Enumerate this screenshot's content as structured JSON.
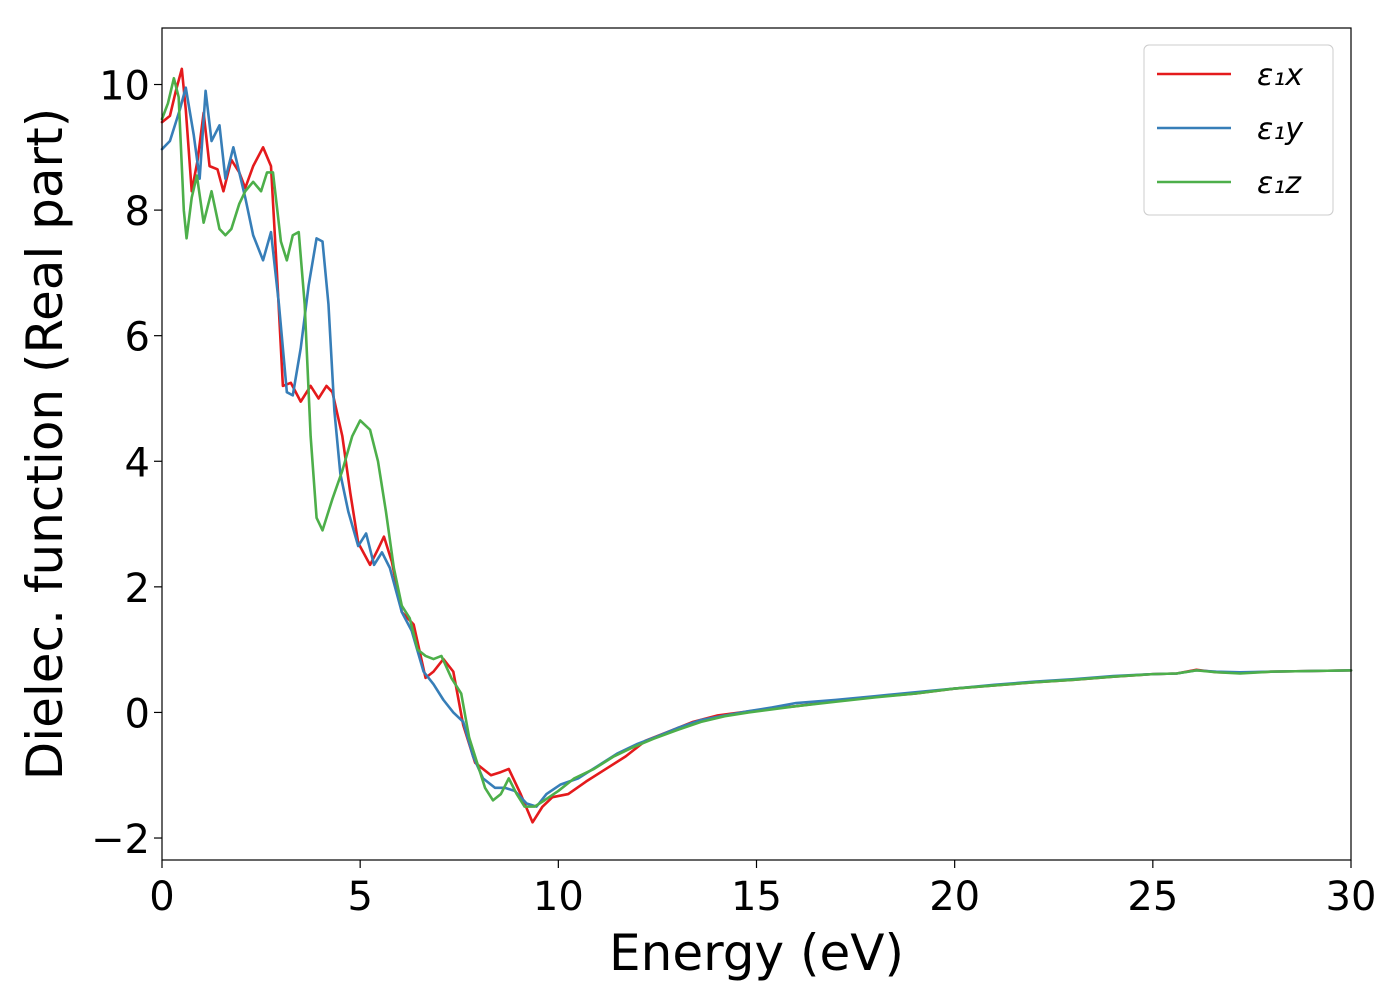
{
  "chart_data": {
    "type": "line",
    "title": "",
    "xlabel": "Energy (eV)",
    "ylabel": "Dielec. function (Real part)",
    "xlim": [
      0,
      30
    ],
    "ylim": [
      -2.35,
      10.9
    ],
    "xticks": [
      0,
      5,
      10,
      15,
      20,
      25,
      30
    ],
    "yticks": [
      -2,
      0,
      2,
      4,
      6,
      8,
      10
    ],
    "xtick_labels": [
      "0",
      "5",
      "10",
      "15",
      "20",
      "25",
      "30"
    ],
    "ytick_labels": [
      "−2",
      "0",
      "2",
      "4",
      "6",
      "8",
      "10"
    ],
    "grid": false,
    "legend_position": "top-right",
    "series": [
      {
        "name": "ε₁x",
        "color": "#e41a1c",
        "points": [
          [
            0,
            9.4
          ],
          [
            0.2,
            9.5
          ],
          [
            0.35,
            9.9
          ],
          [
            0.5,
            10.25
          ],
          [
            0.6,
            9.6
          ],
          [
            0.75,
            8.3
          ],
          [
            0.9,
            8.8
          ],
          [
            1.05,
            9.55
          ],
          [
            1.2,
            8.7
          ],
          [
            1.4,
            8.65
          ],
          [
            1.55,
            8.3
          ],
          [
            1.75,
            8.8
          ],
          [
            1.95,
            8.6
          ],
          [
            2.1,
            8.35
          ],
          [
            2.3,
            8.7
          ],
          [
            2.55,
            9.0
          ],
          [
            2.75,
            8.7
          ],
          [
            2.9,
            7.0
          ],
          [
            3.05,
            5.2
          ],
          [
            3.25,
            5.25
          ],
          [
            3.5,
            4.95
          ],
          [
            3.75,
            5.2
          ],
          [
            3.95,
            5.0
          ],
          [
            4.15,
            5.2
          ],
          [
            4.3,
            5.1
          ],
          [
            4.55,
            4.4
          ],
          [
            4.75,
            3.5
          ],
          [
            4.95,
            2.7
          ],
          [
            5.25,
            2.35
          ],
          [
            5.45,
            2.6
          ],
          [
            5.6,
            2.8
          ],
          [
            5.8,
            2.4
          ],
          [
            6.05,
            1.6
          ],
          [
            6.35,
            1.4
          ],
          [
            6.65,
            0.55
          ],
          [
            6.85,
            0.65
          ],
          [
            7.1,
            0.85
          ],
          [
            7.35,
            0.65
          ],
          [
            7.6,
            -0.2
          ],
          [
            7.9,
            -0.8
          ],
          [
            8.3,
            -1.0
          ],
          [
            8.55,
            -0.95
          ],
          [
            8.75,
            -0.9
          ],
          [
            9.05,
            -1.3
          ],
          [
            9.35,
            -1.75
          ],
          [
            9.6,
            -1.5
          ],
          [
            9.85,
            -1.35
          ],
          [
            10.25,
            -1.3
          ],
          [
            10.7,
            -1.1
          ],
          [
            11.2,
            -0.9
          ],
          [
            11.7,
            -0.7
          ],
          [
            12.2,
            -0.45
          ],
          [
            12.8,
            -0.3
          ],
          [
            13.4,
            -0.15
          ],
          [
            14.0,
            -0.05
          ],
          [
            14.6,
            0.0
          ],
          [
            15.2,
            0.05
          ],
          [
            16.0,
            0.1
          ],
          [
            17.0,
            0.18
          ],
          [
            18.0,
            0.25
          ],
          [
            19.0,
            0.3
          ],
          [
            20.0,
            0.38
          ],
          [
            21.0,
            0.43
          ],
          [
            22.0,
            0.48
          ],
          [
            23.0,
            0.52
          ],
          [
            24.0,
            0.57
          ],
          [
            25.0,
            0.61
          ],
          [
            25.6,
            0.62
          ],
          [
            26.1,
            0.68
          ],
          [
            26.6,
            0.64
          ],
          [
            27.2,
            0.63
          ],
          [
            28.0,
            0.65
          ],
          [
            29.0,
            0.66
          ],
          [
            30.0,
            0.67
          ]
        ]
      },
      {
        "name": "ε₁y",
        "color": "#377eb8",
        "points": [
          [
            0,
            8.97
          ],
          [
            0.2,
            9.1
          ],
          [
            0.45,
            9.6
          ],
          [
            0.6,
            9.95
          ],
          [
            0.8,
            9.2
          ],
          [
            0.95,
            8.5
          ],
          [
            1.1,
            9.9
          ],
          [
            1.25,
            9.1
          ],
          [
            1.45,
            9.35
          ],
          [
            1.6,
            8.5
          ],
          [
            1.8,
            9.0
          ],
          [
            1.95,
            8.6
          ],
          [
            2.1,
            8.2
          ],
          [
            2.3,
            7.6
          ],
          [
            2.55,
            7.2
          ],
          [
            2.75,
            7.65
          ],
          [
            2.95,
            6.5
          ],
          [
            3.15,
            5.1
          ],
          [
            3.3,
            5.05
          ],
          [
            3.5,
            5.8
          ],
          [
            3.7,
            6.8
          ],
          [
            3.9,
            7.55
          ],
          [
            4.05,
            7.5
          ],
          [
            4.2,
            6.5
          ],
          [
            4.35,
            4.8
          ],
          [
            4.5,
            3.8
          ],
          [
            4.7,
            3.2
          ],
          [
            4.95,
            2.65
          ],
          [
            5.15,
            2.85
          ],
          [
            5.35,
            2.35
          ],
          [
            5.55,
            2.55
          ],
          [
            5.75,
            2.3
          ],
          [
            6.05,
            1.6
          ],
          [
            6.3,
            1.3
          ],
          [
            6.6,
            0.65
          ],
          [
            6.85,
            0.45
          ],
          [
            7.1,
            0.2
          ],
          [
            7.35,
            0.0
          ],
          [
            7.6,
            -0.15
          ],
          [
            7.85,
            -0.7
          ],
          [
            8.1,
            -1.05
          ],
          [
            8.4,
            -1.2
          ],
          [
            8.65,
            -1.2
          ],
          [
            8.9,
            -1.25
          ],
          [
            9.2,
            -1.45
          ],
          [
            9.45,
            -1.5
          ],
          [
            9.7,
            -1.3
          ],
          [
            10.05,
            -1.15
          ],
          [
            10.5,
            -1.05
          ],
          [
            11.0,
            -0.85
          ],
          [
            11.5,
            -0.65
          ],
          [
            12.0,
            -0.5
          ],
          [
            12.5,
            -0.38
          ],
          [
            13.0,
            -0.25
          ],
          [
            13.6,
            -0.12
          ],
          [
            14.2,
            -0.05
          ],
          [
            14.8,
            0.02
          ],
          [
            15.4,
            0.08
          ],
          [
            16.0,
            0.15
          ],
          [
            17.0,
            0.2
          ],
          [
            18.0,
            0.26
          ],
          [
            19.0,
            0.32
          ],
          [
            20.0,
            0.38
          ],
          [
            21.0,
            0.44
          ],
          [
            22.0,
            0.49
          ],
          [
            23.0,
            0.53
          ],
          [
            24.0,
            0.58
          ],
          [
            25.0,
            0.61
          ],
          [
            25.6,
            0.62
          ],
          [
            26.1,
            0.67
          ],
          [
            26.6,
            0.65
          ],
          [
            27.2,
            0.64
          ],
          [
            28.0,
            0.65
          ],
          [
            29.0,
            0.66
          ],
          [
            30.0,
            0.67
          ]
        ]
      },
      {
        "name": "ε₁z",
        "color": "#4daf4a",
        "points": [
          [
            0,
            9.45
          ],
          [
            0.15,
            9.7
          ],
          [
            0.3,
            10.1
          ],
          [
            0.42,
            9.8
          ],
          [
            0.55,
            8.0
          ],
          [
            0.62,
            7.55
          ],
          [
            0.75,
            8.2
          ],
          [
            0.88,
            8.55
          ],
          [
            1.05,
            7.8
          ],
          [
            1.25,
            8.3
          ],
          [
            1.45,
            7.7
          ],
          [
            1.6,
            7.6
          ],
          [
            1.75,
            7.7
          ],
          [
            1.95,
            8.1
          ],
          [
            2.1,
            8.3
          ],
          [
            2.3,
            8.45
          ],
          [
            2.5,
            8.3
          ],
          [
            2.65,
            8.6
          ],
          [
            2.8,
            8.6
          ],
          [
            3.0,
            7.5
          ],
          [
            3.15,
            7.2
          ],
          [
            3.3,
            7.6
          ],
          [
            3.45,
            7.65
          ],
          [
            3.6,
            6.5
          ],
          [
            3.75,
            4.4
          ],
          [
            3.9,
            3.1
          ],
          [
            4.05,
            2.9
          ],
          [
            4.3,
            3.4
          ],
          [
            4.55,
            3.85
          ],
          [
            4.8,
            4.4
          ],
          [
            5.0,
            4.65
          ],
          [
            5.25,
            4.5
          ],
          [
            5.45,
            4.0
          ],
          [
            5.65,
            3.2
          ],
          [
            5.85,
            2.3
          ],
          [
            6.05,
            1.7
          ],
          [
            6.25,
            1.5
          ],
          [
            6.45,
            1.0
          ],
          [
            6.65,
            0.9
          ],
          [
            6.85,
            0.85
          ],
          [
            7.05,
            0.9
          ],
          [
            7.3,
            0.55
          ],
          [
            7.55,
            0.3
          ],
          [
            7.75,
            -0.4
          ],
          [
            7.95,
            -0.8
          ],
          [
            8.15,
            -1.2
          ],
          [
            8.35,
            -1.4
          ],
          [
            8.55,
            -1.3
          ],
          [
            8.75,
            -1.05
          ],
          [
            8.95,
            -1.3
          ],
          [
            9.15,
            -1.5
          ],
          [
            9.4,
            -1.5
          ],
          [
            9.65,
            -1.4
          ],
          [
            10.0,
            -1.25
          ],
          [
            10.4,
            -1.05
          ],
          [
            10.9,
            -0.9
          ],
          [
            11.4,
            -0.7
          ],
          [
            11.9,
            -0.55
          ],
          [
            12.4,
            -0.42
          ],
          [
            13.0,
            -0.28
          ],
          [
            13.6,
            -0.15
          ],
          [
            14.2,
            -0.06
          ],
          [
            14.8,
            0.0
          ],
          [
            15.4,
            0.05
          ],
          [
            16.0,
            0.1
          ],
          [
            17.0,
            0.17
          ],
          [
            18.0,
            0.24
          ],
          [
            19.0,
            0.3
          ],
          [
            20.0,
            0.38
          ],
          [
            21.0,
            0.43
          ],
          [
            22.0,
            0.48
          ],
          [
            23.0,
            0.52
          ],
          [
            24.0,
            0.57
          ],
          [
            25.0,
            0.61
          ],
          [
            25.6,
            0.62
          ],
          [
            26.1,
            0.67
          ],
          [
            26.6,
            0.64
          ],
          [
            27.2,
            0.62
          ],
          [
            28.0,
            0.65
          ],
          [
            29.0,
            0.66
          ],
          [
            30.0,
            0.67
          ]
        ]
      }
    ]
  }
}
